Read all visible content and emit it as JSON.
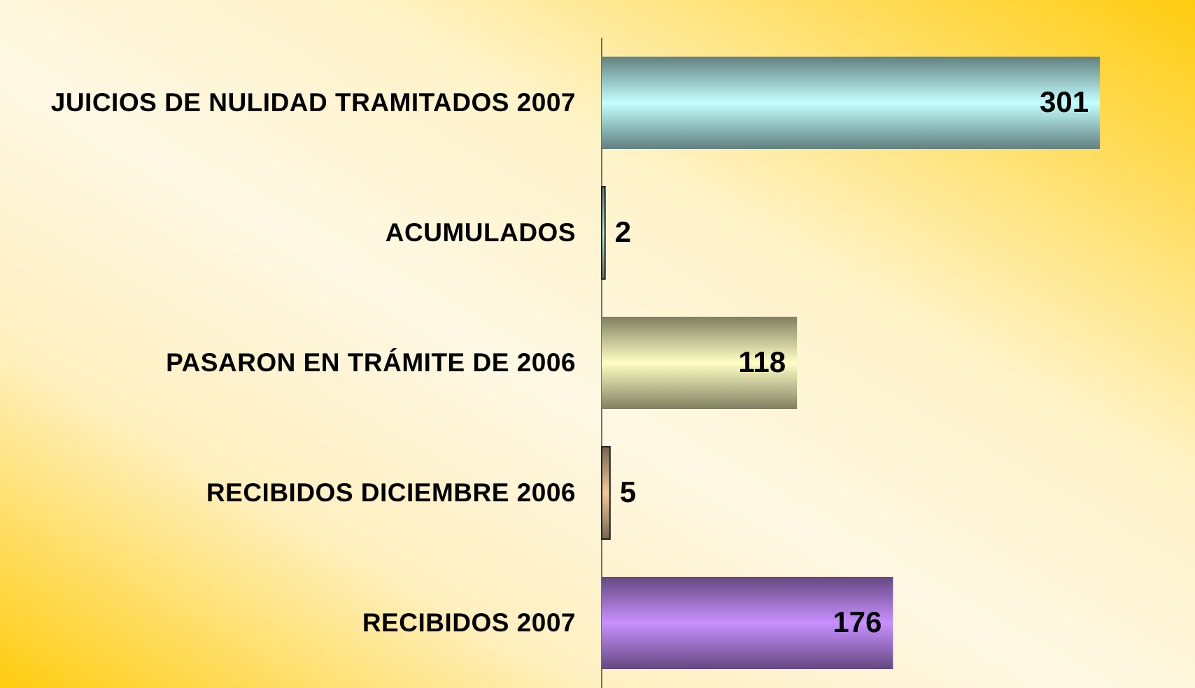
{
  "chart_data": {
    "type": "bar",
    "orientation": "horizontal",
    "categories": [
      "JUICIOS DE NULIDAD TRAMITADOS 2007",
      "ACUMULADOS",
      "PASARON EN TRÁMITE DE 2006",
      "RECIBIDOS DICIEMBRE 2006",
      "RECIBIDOS 2007"
    ],
    "values": [
      301,
      2,
      118,
      5,
      176
    ],
    "colors": [
      "#c4ffff",
      "#c8f4dc",
      "#ffffc4",
      "#f4c89c",
      "#c890ff"
    ],
    "xlim": [
      0,
      350
    ]
  }
}
